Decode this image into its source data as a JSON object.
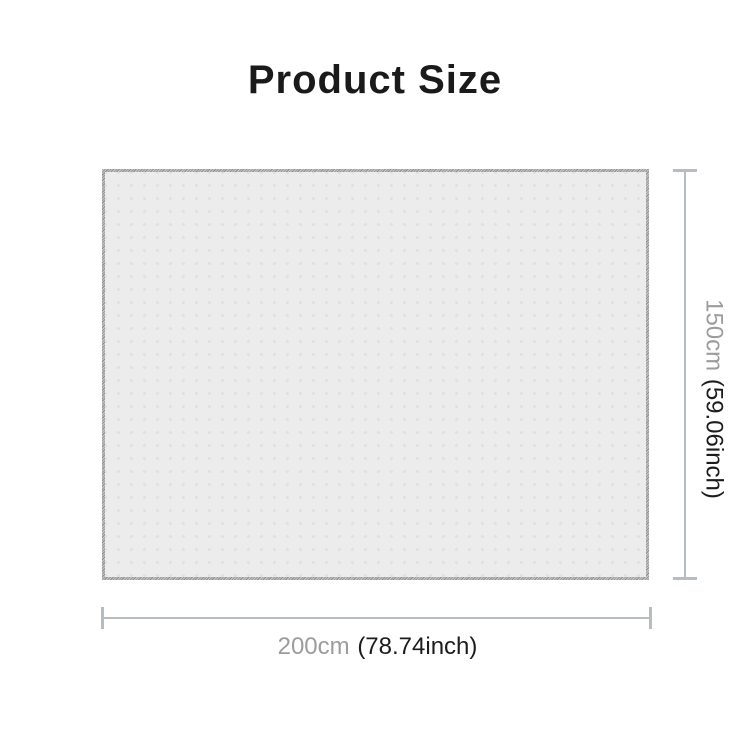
{
  "title": {
    "text": "Product Size"
  },
  "product_box": {
    "fill": "#ececec",
    "dot_color": "#e0e0e0",
    "border_color": "#a9a9a9"
  },
  "dimensions": {
    "height": {
      "metric": "150cm",
      "imperial": "(59.06inch)"
    },
    "width": {
      "metric": "200cm",
      "imperial": "(78.74inch)"
    }
  },
  "colors": {
    "title_text": "#1a1a1a",
    "metric_text": "#9c9c9c",
    "imperial_text": "#1c1c1c",
    "dimension_line": "#b6bcc2",
    "box_fill": "#ececec",
    "box_dot": "#e0e0e0",
    "box_border": "#a9a9a9"
  }
}
